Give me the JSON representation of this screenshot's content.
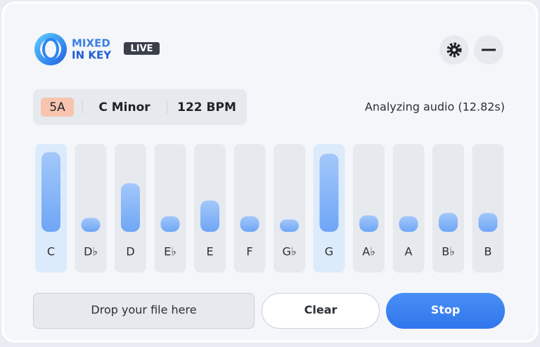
{
  "header": {
    "logo_top": "MIXED",
    "logo_bottom": "IN KEY",
    "badge": "LIVE"
  },
  "info": {
    "key_code": "5A",
    "key_name": "C Minor",
    "tempo": "122 BPM",
    "status": "Analyzing audio (12.82s)"
  },
  "chroma": {
    "notes": [
      "C",
      "D♭",
      "D",
      "E♭",
      "E",
      "F",
      "G♭",
      "G",
      "A♭",
      "A",
      "B♭",
      "B"
    ],
    "values": [
      97,
      17,
      59,
      19,
      38,
      19,
      15,
      95,
      20,
      19,
      23,
      23
    ],
    "ylim": [
      0,
      100
    ],
    "highlighted": [
      "C",
      "G"
    ],
    "color": "#7fb2f7"
  },
  "buttons": {
    "drop": "Drop your file here",
    "clear": "Clear",
    "stop": "Stop"
  }
}
